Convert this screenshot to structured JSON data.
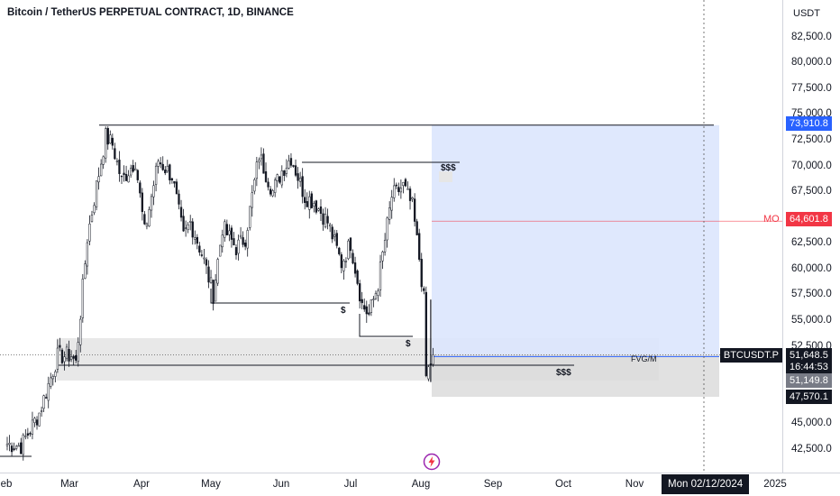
{
  "header": {
    "title": "Bitcoin / TetherUS PERPETUAL CONTRACT, 1D, BINANCE"
  },
  "price_axis": {
    "currency": "USDT",
    "ticks": [
      "82,500.0",
      "80,000.0",
      "77,500.0",
      "75,000.0",
      "72,500.0",
      "70,000.0",
      "67,500.0",
      "65,000.0",
      "62,500.0",
      "60,000.0",
      "57,500.0",
      "55,000.0",
      "52,500.0",
      "50,000.0",
      "47,500.0",
      "45,000.0",
      "42,500.0"
    ],
    "tick_values": [
      82500,
      80000,
      77500,
      75000,
      72500,
      70000,
      67500,
      65000,
      62500,
      60000,
      57500,
      55000,
      52500,
      50000,
      47500,
      45000,
      42500
    ]
  },
  "time_axis": {
    "ticks": [
      "eb",
      "Mar",
      "Apr",
      "May",
      "Jun",
      "Jul",
      "Aug",
      "Sep",
      "Oct",
      "Nov",
      "2025"
    ],
    "crosshair_date": "Mon 02/12/2024"
  },
  "badges": {
    "range_high": "73,910.8",
    "mo_label": "MO",
    "mo_price": "64,601.8",
    "symbol": "BTCUSDT.P",
    "last_price": "51,648.5",
    "countdown": "16:44:53",
    "range_low": "51,149.8",
    "box_low": "47,570.1"
  },
  "annotations": {
    "sss_top": "$$$",
    "s_may": "$",
    "s_jul": "$",
    "sss_bottom": "$$$",
    "fvg": "FVG/M"
  },
  "colors": {
    "up": "#ffffff",
    "down": "#131722",
    "mo_line": "#f23645",
    "blue_badge": "#2962ff",
    "blue_box": "#dbe6fd",
    "gray_zone": "#e8e8e8",
    "gray_box": "#d9d9d9",
    "last_line": "#2962ff"
  },
  "chart_data": {
    "type": "candlestick",
    "symbol": "BTCUSDT.P",
    "interval": "1D",
    "ylim": [
      40500,
      86000
    ],
    "levels": {
      "range_high": 73910.8,
      "mo": 64601.8,
      "last": 51648.5,
      "range_low": 51149.8,
      "box_low": 47570.1
    },
    "pivots": [
      {
        "day": 0,
        "close": 43000
      },
      {
        "day": 6,
        "close": 42800
      },
      {
        "day": 14,
        "close": 46000
      },
      {
        "day": 22,
        "close": 51500
      },
      {
        "day": 28,
        "close": 51600
      },
      {
        "day": 30,
        "close": 50800
      },
      {
        "day": 35,
        "close": 63000
      },
      {
        "day": 39,
        "close": 68000
      },
      {
        "day": 43,
        "close": 72800
      },
      {
        "day": 46,
        "close": 72000
      },
      {
        "day": 50,
        "close": 68500
      },
      {
        "day": 56,
        "close": 70500
      },
      {
        "day": 60,
        "close": 63500
      },
      {
        "day": 66,
        "close": 70500
      },
      {
        "day": 72,
        "close": 69000
      },
      {
        "day": 77,
        "close": 63000
      },
      {
        "day": 80,
        "close": 64500
      },
      {
        "day": 85,
        "close": 61500
      },
      {
        "day": 90,
        "close": 57500
      },
      {
        "day": 94,
        "close": 64000
      },
      {
        "day": 100,
        "close": 62000
      },
      {
        "day": 104,
        "close": 63000
      },
      {
        "day": 110,
        "close": 71000
      },
      {
        "day": 116,
        "close": 67500
      },
      {
        "day": 120,
        "close": 69500
      },
      {
        "day": 124,
        "close": 70800
      },
      {
        "day": 130,
        "close": 67000
      },
      {
        "day": 134,
        "close": 66500
      },
      {
        "day": 140,
        "close": 64500
      },
      {
        "day": 146,
        "close": 60500
      },
      {
        "day": 150,
        "close": 62500
      },
      {
        "day": 155,
        "close": 56500
      },
      {
        "day": 158,
        "close": 55500
      },
      {
        "day": 162,
        "close": 58500
      },
      {
        "day": 168,
        "close": 67000
      },
      {
        "day": 173,
        "close": 68000
      },
      {
        "day": 177,
        "close": 66000
      },
      {
        "day": 180,
        "close": 61000
      },
      {
        "day": 182,
        "close": 57000
      },
      {
        "day": 183,
        "close": 49500
      },
      {
        "day": 186,
        "close": 51648.5
      }
    ]
  }
}
